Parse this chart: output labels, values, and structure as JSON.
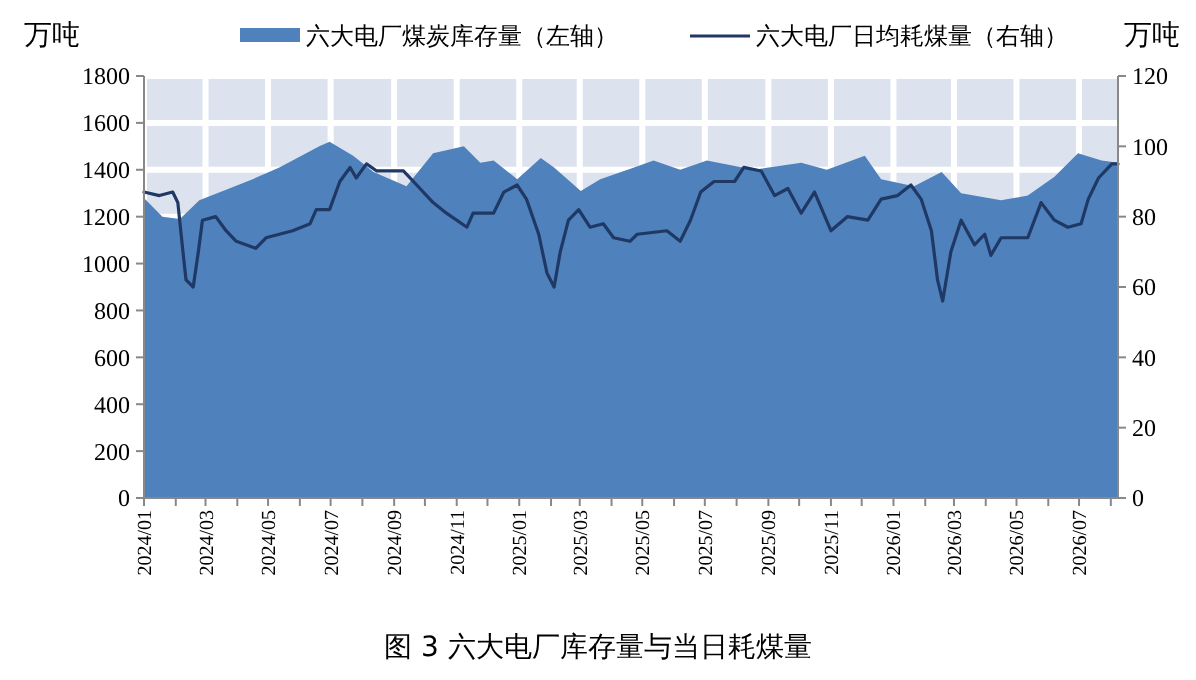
{
  "chart_data": {
    "type": "line",
    "title": "图 3 六大电厂库存量与当日耗煤量",
    "ylabel": "万吨",
    "y2label": "万吨",
    "legend": "top",
    "grid": true,
    "xlim": [
      "2024-01-01",
      "2026-08-08"
    ],
    "xticks": [
      {
        "value": "2024-01",
        "label": "2024/01"
      },
      {
        "value": "2024-02",
        "label": null
      },
      {
        "value": "2024-03",
        "label": "2024/03"
      },
      {
        "value": "2024-04",
        "label": null
      },
      {
        "value": "2024-05",
        "label": "2024/05"
      },
      {
        "value": "2024-06",
        "label": null
      },
      {
        "value": "2024-07",
        "label": "2024/07"
      },
      {
        "value": "2024-08",
        "label": null
      },
      {
        "value": "2024-09",
        "label": "2024/09"
      },
      {
        "value": "2024-10",
        "label": null
      },
      {
        "value": "2024-11",
        "label": "2024/11"
      },
      {
        "value": "2024-12",
        "label": null
      },
      {
        "value": "2025-01",
        "label": "2025/01"
      },
      {
        "value": "2025-02",
        "label": null
      },
      {
        "value": "2025-03",
        "label": "2025/03"
      },
      {
        "value": "2025-04",
        "label": null
      },
      {
        "value": "2025-05",
        "label": "2025/05"
      },
      {
        "value": "2025-06",
        "label": null
      },
      {
        "value": "2025-07",
        "label": "2025/07"
      },
      {
        "value": "2025-08",
        "label": null
      },
      {
        "value": "2025-09",
        "label": "2025/09"
      },
      {
        "value": "2025-10",
        "label": null
      },
      {
        "value": "2025-11",
        "label": "2025/11"
      },
      {
        "value": "2025-12",
        "label": null
      },
      {
        "value": "2026-01",
        "label": "2026/01"
      },
      {
        "value": "2026-02",
        "label": null
      },
      {
        "value": "2026-03",
        "label": "2026/03"
      },
      {
        "value": "2026-04",
        "label": null
      },
      {
        "value": "2026-05",
        "label": "2026/05"
      },
      {
        "value": "2026-06",
        "label": null
      },
      {
        "value": "2026-07",
        "label": "2026/07"
      },
      {
        "value": "2026-08",
        "label": null
      }
    ],
    "ylim": [
      0,
      1800
    ],
    "yticks": [
      0,
      200,
      400,
      600,
      800,
      1000,
      1200,
      1400,
      1600,
      1800
    ],
    "y2lim": [
      0,
      120
    ],
    "y2ticks": [
      0,
      20,
      40,
      60,
      80,
      100,
      120
    ],
    "series": [
      {
        "name": "六大电厂煤炭库存量（左轴）",
        "type": "area",
        "color": "#4f81bd",
        "x": [
          "2024-01-01",
          "2024-01-19",
          "2024-02-05",
          "2024-02-24",
          "2024-04-16",
          "2024-05-12",
          "2024-06-20",
          "2024-06-30",
          "2024-07-23",
          "2024-08-12",
          "2024-09-13",
          "2024-10-09",
          "2024-11-08",
          "2024-11-24",
          "2024-12-07",
          "2024-12-30",
          "2025-01-22",
          "2025-02-04",
          "2025-03-02",
          "2025-03-21",
          "2025-04-23",
          "2025-05-12",
          "2025-06-07",
          "2025-07-03",
          "2025-08-18",
          "2025-10-03",
          "2025-10-28",
          "2025-12-04",
          "2025-12-20",
          "2026-01-21",
          "2026-02-17",
          "2026-03-08",
          "2026-04-16",
          "2026-05-12",
          "2026-06-07",
          "2026-06-30",
          "2026-07-23",
          "2026-08-08"
        ],
        "values": [
          1280,
          1200,
          1190,
          1270,
          1360,
          1410,
          1500,
          1520,
          1460,
          1390,
          1330,
          1470,
          1500,
          1430,
          1440,
          1360,
          1450,
          1410,
          1310,
          1360,
          1410,
          1440,
          1400,
          1440,
          1400,
          1430,
          1400,
          1460,
          1360,
          1330,
          1390,
          1300,
          1270,
          1290,
          1370,
          1470,
          1440,
          1430
        ]
      },
      {
        "name": "六大电厂日均耗煤量（右轴）",
        "axis": "y2",
        "color": "#1f3864",
        "x": [
          "2024-01-01",
          "2024-01-16",
          "2024-01-29",
          "2024-02-03",
          "2024-02-08",
          "2024-02-11",
          "2024-02-18",
          "2024-02-23",
          "2024-02-27",
          "2024-03-11",
          "2024-03-21",
          "2024-03-31",
          "2024-04-19",
          "2024-04-29",
          "2024-05-25",
          "2024-06-11",
          "2024-06-17",
          "2024-06-30",
          "2024-07-10",
          "2024-07-20",
          "2024-07-26",
          "2024-08-05",
          "2024-08-15",
          "2024-09-10",
          "2024-09-23",
          "2024-10-09",
          "2024-10-22",
          "2024-11-11",
          "2024-11-17",
          "2024-12-07",
          "2024-12-17",
          "2024-12-30",
          "2025-01-08",
          "2025-01-20",
          "2025-01-28",
          "2025-02-04",
          "2025-02-10",
          "2025-02-18",
          "2025-02-28",
          "2025-03-11",
          "2025-03-24",
          "2025-04-03",
          "2025-04-19",
          "2025-04-26",
          "2025-05-25",
          "2025-06-07",
          "2025-06-17",
          "2025-06-27",
          "2025-07-10",
          "2025-07-30",
          "2025-08-08",
          "2025-08-25",
          "2025-09-07",
          "2025-09-20",
          "2025-10-03",
          "2025-10-16",
          "2025-11-01",
          "2025-11-17",
          "2025-12-07",
          "2025-12-20",
          "2026-01-05",
          "2026-01-18",
          "2026-01-28",
          "2026-02-07",
          "2026-02-13",
          "2026-02-18",
          "2026-02-26",
          "2026-03-08",
          "2026-03-21",
          "2026-03-31",
          "2026-04-06",
          "2026-04-16",
          "2026-05-12",
          "2026-05-25",
          "2026-06-07",
          "2026-06-20",
          "2026-07-03",
          "2026-07-10",
          "2026-07-20",
          "2026-08-02",
          "2026-08-08"
        ],
        "values": [
          87,
          86,
          87,
          84,
          70,
          62,
          60,
          70,
          79,
          80,
          76,
          73,
          71,
          74,
          76,
          78,
          82,
          82,
          90,
          94,
          91,
          95,
          93,
          93,
          89,
          84,
          81,
          77,
          81,
          81,
          87,
          89,
          85,
          75,
          64,
          60,
          70,
          79,
          82,
          77,
          78,
          74,
          73,
          75,
          76,
          73,
          79,
          87,
          90,
          90,
          94,
          93,
          86,
          88,
          81,
          87,
          76,
          80,
          79,
          85,
          86,
          89,
          85,
          76,
          62,
          56,
          70,
          79,
          72,
          75,
          69,
          74,
          74,
          84,
          79,
          77,
          78,
          85,
          91,
          95,
          95
        ]
      }
    ]
  }
}
